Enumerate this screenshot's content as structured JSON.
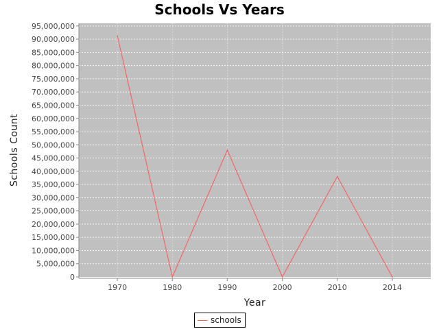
{
  "chart_data": {
    "type": "line",
    "title": "Schools Vs Years",
    "xlabel": "Year",
    "ylabel": "Schools Count",
    "categories": [
      "1970",
      "1980",
      "1990",
      "2000",
      "2010",
      "2014"
    ],
    "series": [
      {
        "name": "schools",
        "values": [
          91300000,
          0,
          48000000,
          0,
          38000000,
          0
        ]
      }
    ],
    "ylim": [
      0,
      96000000
    ],
    "yticks": [
      0,
      5000000,
      10000000,
      15000000,
      20000000,
      25000000,
      30000000,
      35000000,
      40000000,
      45000000,
      50000000,
      55000000,
      60000000,
      65000000,
      70000000,
      75000000,
      80000000,
      85000000,
      90000000,
      95000000
    ],
    "ytick_labels": [
      "0",
      "5,000,000",
      "10,000,000",
      "15,000,000",
      "20,000,000",
      "25,000,000",
      "30,000,000",
      "35,000,000",
      "40,000,000",
      "45,000,000",
      "50,000,000",
      "55,000,000",
      "60,000,000",
      "65,000,000",
      "70,000,000",
      "75,000,000",
      "80,000,000",
      "85,000,000",
      "90,000,000",
      "95,000,000"
    ],
    "grid": true,
    "legend": "bottom-center",
    "colors": {
      "plot_background": "#c0c0c0",
      "gridline": "#ffffff",
      "series": "#ff5555"
    }
  }
}
